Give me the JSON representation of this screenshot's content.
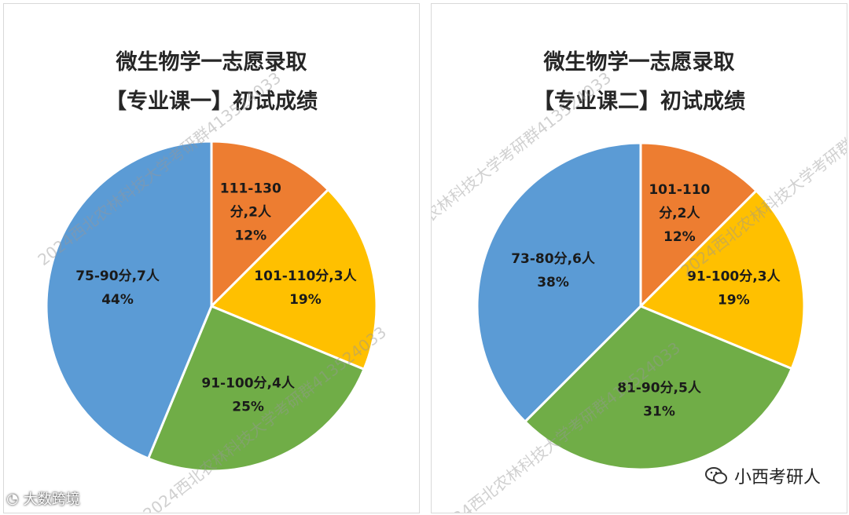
{
  "chart_data": [
    {
      "type": "pie",
      "title": "微生物学一志愿录取",
      "subtitle": "【专业课一】初试成绩",
      "slices": [
        {
          "name": "111-130分",
          "count": 2,
          "percent": "12%",
          "value": 2,
          "color": "#ED7D31",
          "l1": "111-130",
          "l2": "分,2人",
          "l3": "12%"
        },
        {
          "name": "101-110分",
          "count": 3,
          "percent": "19%",
          "value": 3,
          "color": "#FFC000",
          "l1": "101-110分,3人",
          "l2": "19%"
        },
        {
          "name": "91-100分",
          "count": 4,
          "percent": "25%",
          "value": 4,
          "color": "#70AD47",
          "l1": "91-100分,4人",
          "l2": "25%"
        },
        {
          "name": "75-90分",
          "count": 7,
          "percent": "44%",
          "value": 7,
          "color": "#5B9BD5",
          "l1": "75-90分,7人",
          "l2": "44%"
        }
      ]
    },
    {
      "type": "pie",
      "title": "微生物学一志愿录取",
      "subtitle": "【专业课二】初试成绩",
      "slices": [
        {
          "name": "101-110分",
          "count": 2,
          "percent": "12%",
          "value": 2,
          "color": "#ED7D31",
          "l1": "101-110",
          "l2": "分,2人",
          "l3": "12%"
        },
        {
          "name": "91-100分",
          "count": 3,
          "percent": "19%",
          "value": 3,
          "color": "#FFC000",
          "l1": "91-100分,3人",
          "l2": "19%"
        },
        {
          "name": "81-90分",
          "count": 5,
          "percent": "31%",
          "value": 5,
          "color": "#70AD47",
          "l1": "81-90分,5人",
          "l2": "31%"
        },
        {
          "name": "73-80分",
          "count": 6,
          "percent": "38%",
          "value": 6,
          "color": "#5B9BD5",
          "l1": "73-80分,6人",
          "l2": "38%"
        }
      ]
    }
  ],
  "watermark": "2024西北农林科技大学考研群413524033",
  "footer": {
    "left_text": "大数跨境",
    "right_text": "小西考研人"
  }
}
